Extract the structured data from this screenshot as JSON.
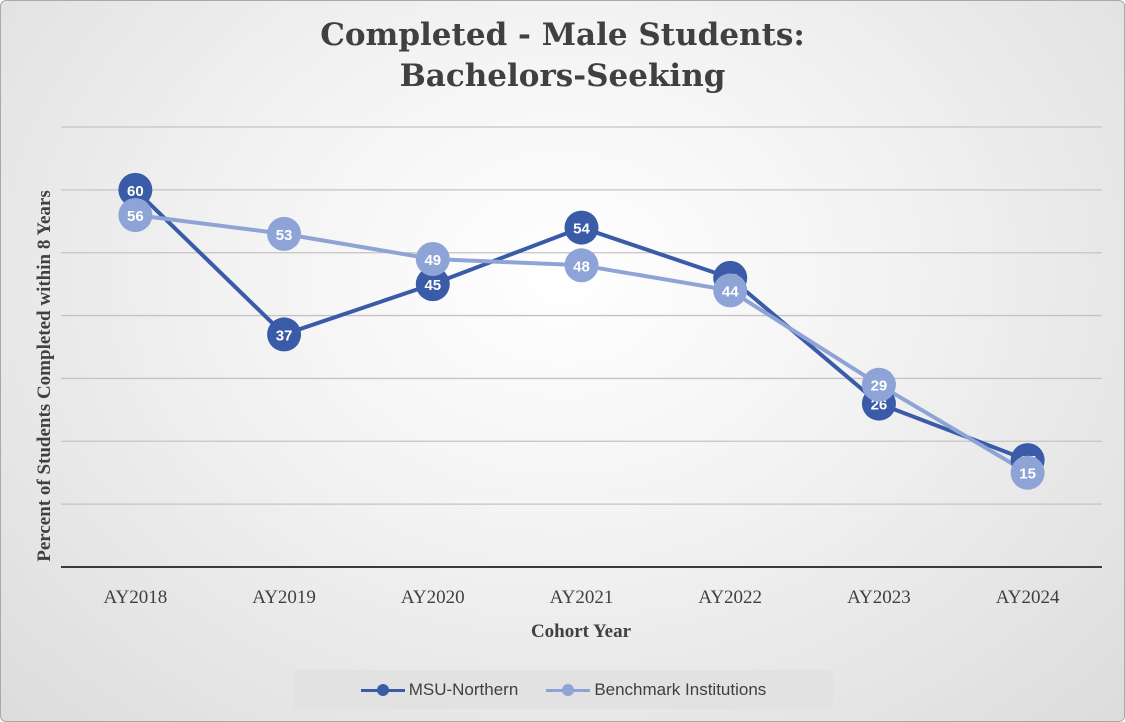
{
  "chart_data": {
    "type": "line",
    "title_lines": [
      "Completed - Male Students:",
      "Bachelors-Seeking"
    ],
    "xlabel": "Cohort Year",
    "ylabel": "Percent of Students Completed within 8 Years",
    "categories": [
      "AY2018",
      "AY2019",
      "AY2020",
      "AY2021",
      "AY2022",
      "AY2023",
      "AY2024"
    ],
    "ylim": [
      0,
      70
    ],
    "grid": true,
    "legend_position": "bottom",
    "series": [
      {
        "name": "MSU-Northern",
        "values": [
          60,
          37,
          45,
          54,
          46,
          26,
          17
        ],
        "color": "#3a5ba8"
      },
      {
        "name": "Benchmark Institutions",
        "values": [
          56,
          53,
          49,
          48,
          44,
          29,
          15
        ],
        "color": "#8ea4d6"
      }
    ]
  }
}
